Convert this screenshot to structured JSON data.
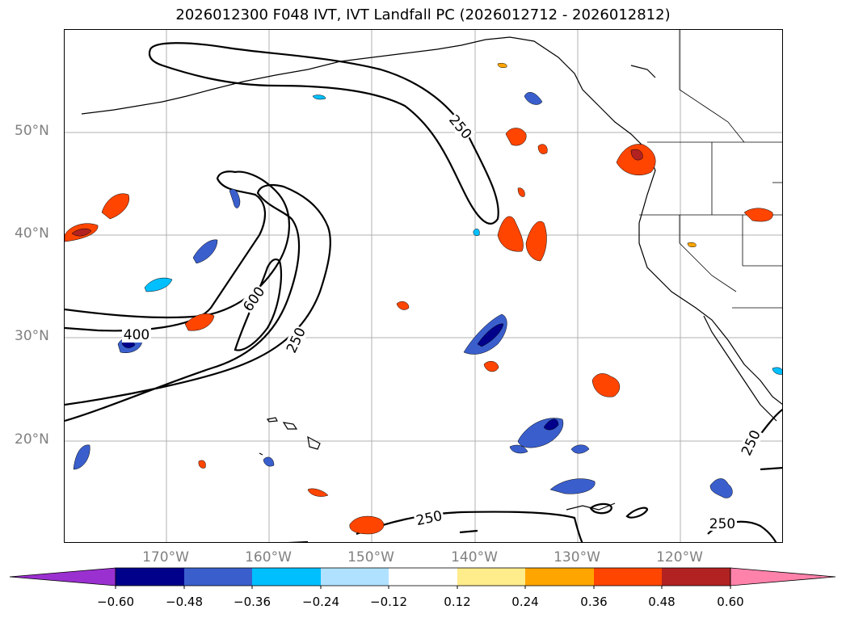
{
  "title": "2026012300 F048 IVT, IVT Landfall PC (2026012712 - 2026012812)",
  "lat_labels": [
    "50°N",
    "40°N",
    "30°N",
    "20°N"
  ],
  "lon_labels": [
    "170°W",
    "160°W",
    "150°W",
    "140°W",
    "130°W",
    "120°W"
  ],
  "contour_labels": [
    "250",
    "600",
    "400",
    "250",
    "250",
    "250",
    "250"
  ],
  "colorbar": {
    "ticks": [
      "−0.60",
      "−0.48",
      "−0.36",
      "−0.24",
      "−0.12",
      "0.12",
      "0.24",
      "0.36",
      "0.48",
      "0.60"
    ],
    "colors": [
      "#9b30d0",
      "#00008b",
      "#3a5fcd",
      "#00bfff",
      "#b0e2ff",
      "#ffffff",
      "#ffec8b",
      "#ffa500",
      "#ff4500",
      "#b22222",
      "#ff82ab"
    ]
  }
}
